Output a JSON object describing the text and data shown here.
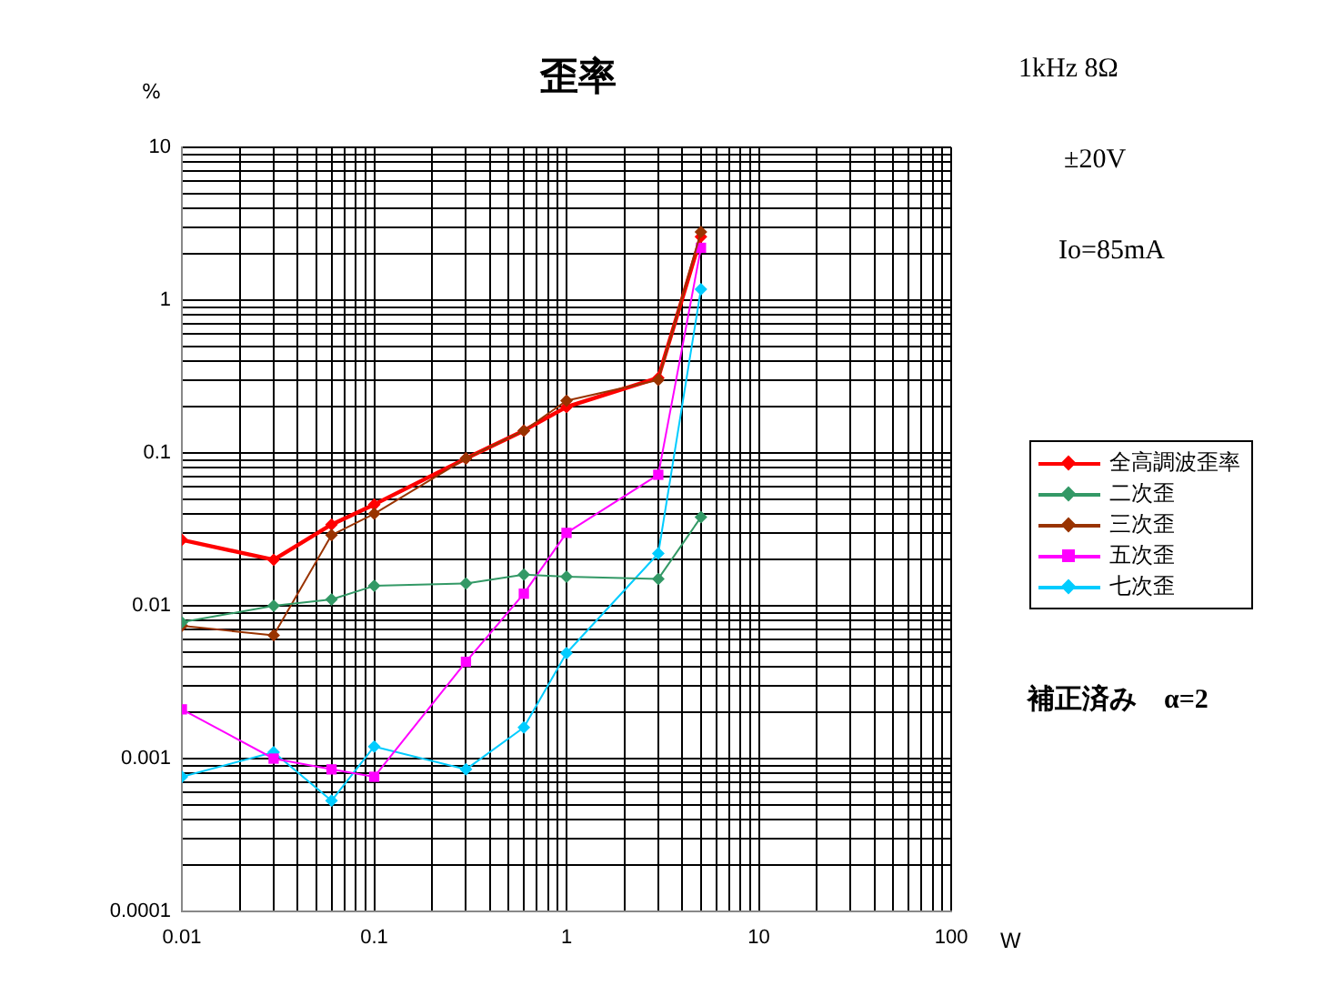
{
  "chart_data": {
    "type": "line",
    "title": "歪率",
    "xlabel": "W",
    "ylabel": "%",
    "annotations": [
      "1kHz 8Ω",
      "±20V",
      "Io=85mA",
      "補正済み　α=2"
    ],
    "x": [
      0.01,
      0.03,
      0.06,
      0.1,
      0.3,
      0.6,
      1,
      3,
      5
    ],
    "series": [
      {
        "name": "全高調波歪率",
        "color": "#ff0000",
        "marker": "diamond",
        "values": [
          0.027,
          0.02,
          0.034,
          0.046,
          0.092,
          0.14,
          0.2,
          0.31,
          2.6
        ]
      },
      {
        "name": "二次歪",
        "color": "#339966",
        "marker": "diamond",
        "values": [
          0.0078,
          0.01,
          0.011,
          0.0135,
          0.014,
          0.016,
          0.0155,
          0.015,
          0.038
        ]
      },
      {
        "name": "三次歪",
        "color": "#993300",
        "marker": "diamond",
        "values": [
          0.0074,
          0.0064,
          0.029,
          0.04,
          0.092,
          0.14,
          0.22,
          0.3,
          2.8
        ]
      },
      {
        "name": "五次歪",
        "color": "#ff00ff",
        "marker": "square",
        "values": [
          0.0021,
          0.001,
          0.00085,
          0.00076,
          0.0043,
          0.012,
          0.03,
          0.072,
          2.2
        ]
      },
      {
        "name": "七次歪",
        "color": "#00ccff",
        "marker": "diamond",
        "values": [
          0.00076,
          0.0011,
          0.00053,
          0.0012,
          0.00085,
          0.0016,
          0.0049,
          0.022,
          1.18
        ]
      }
    ],
    "log": "xy",
    "grid": true,
    "legend": "right",
    "xlim": [
      0.01,
      100
    ],
    "xticks": [
      0.01,
      {
        "value": 0.02,
        "label": null
      },
      {
        "value": 0.03,
        "label": null
      },
      {
        "value": 0.04,
        "label": null
      },
      {
        "value": 0.05,
        "label": null
      },
      {
        "value": 0.06,
        "label": null
      },
      {
        "value": 0.07,
        "label": null
      },
      {
        "value": 0.08,
        "label": null
      },
      {
        "value": 0.09,
        "label": null
      },
      0.1,
      {
        "value": 0.2,
        "label": null
      },
      {
        "value": 0.3,
        "label": null
      },
      {
        "value": 0.4,
        "label": null
      },
      {
        "value": 0.5,
        "label": null
      },
      {
        "value": 0.6,
        "label": null
      },
      {
        "value": 0.7,
        "label": null
      },
      {
        "value": 0.8,
        "label": null
      },
      {
        "value": 0.9,
        "label": null
      },
      1,
      {
        "value": 2,
        "label": null
      },
      {
        "value": 3,
        "label": null
      },
      {
        "value": 4,
        "label": null
      },
      {
        "value": 5,
        "label": null
      },
      {
        "value": 6,
        "label": null
      },
      {
        "value": 7,
        "label": null
      },
      {
        "value": 8,
        "label": null
      },
      {
        "value": 9,
        "label": null
      },
      10,
      {
        "value": 20,
        "label": null
      },
      {
        "value": 30,
        "label": null
      },
      {
        "value": 40,
        "label": null
      },
      {
        "value": 50,
        "label": null
      },
      {
        "value": 60,
        "label": null
      },
      {
        "value": 70,
        "label": null
      },
      {
        "value": 80,
        "label": null
      },
      {
        "value": 90,
        "label": null
      },
      100
    ],
    "ylim": [
      0.0001,
      10
    ],
    "yticks": [
      0.0001,
      {
        "value": 0.0002,
        "label": null
      },
      {
        "value": 0.0003,
        "label": null
      },
      {
        "value": 0.0004,
        "label": null
      },
      {
        "value": 0.0005,
        "label": null
      },
      {
        "value": 0.0006,
        "label": null
      },
      {
        "value": 0.0007,
        "label": null
      },
      {
        "value": 0.0008,
        "label": null
      },
      {
        "value": 0.0009,
        "label": null
      },
      0.001,
      {
        "value": 0.002,
        "label": null
      },
      {
        "value": 0.003,
        "label": null
      },
      {
        "value": 0.004,
        "label": null
      },
      {
        "value": 0.005,
        "label": null
      },
      {
        "value": 0.006,
        "label": null
      },
      {
        "value": 0.007,
        "label": null
      },
      {
        "value": 0.008,
        "label": null
      },
      {
        "value": 0.009,
        "label": null
      },
      0.01,
      {
        "value": 0.02,
        "label": null
      },
      {
        "value": 0.03,
        "label": null
      },
      {
        "value": 0.04,
        "label": null
      },
      {
        "value": 0.05,
        "label": null
      },
      {
        "value": 0.06,
        "label": null
      },
      {
        "value": 0.07,
        "label": null
      },
      {
        "value": 0.08,
        "label": null
      },
      {
        "value": 0.09,
        "label": null
      },
      0.1,
      {
        "value": 0.2,
        "label": null
      },
      {
        "value": 0.3,
        "label": null
      },
      {
        "value": 0.4,
        "label": null
      },
      {
        "value": 0.5,
        "label": null
      },
      {
        "value": 0.6,
        "label": null
      },
      {
        "value": 0.7,
        "label": null
      },
      {
        "value": 0.8,
        "label": null
      },
      {
        "value": 0.9,
        "label": null
      },
      1,
      {
        "value": 2,
        "label": null
      },
      {
        "value": 3,
        "label": null
      },
      {
        "value": 4,
        "label": null
      },
      {
        "value": 5,
        "label": null
      },
      {
        "value": 6,
        "label": null
      },
      {
        "value": 7,
        "label": null
      },
      {
        "value": 8,
        "label": null
      },
      {
        "value": 9,
        "label": null
      },
      10
    ]
  }
}
